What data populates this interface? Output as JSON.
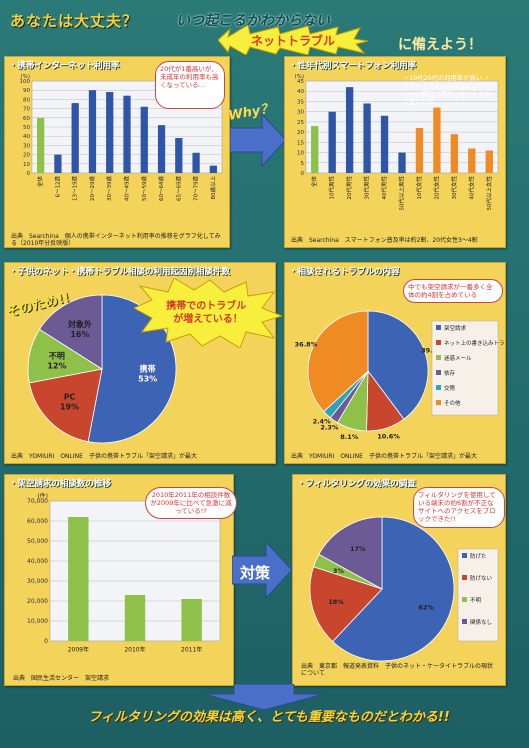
{
  "header": {
    "question": "あなたは大丈夫？",
    "tagline": "いつ起こるかわからない",
    "highlight": "ネットトラブル",
    "suffix": "に備えよう！"
  },
  "panel1": {
    "title": "・携帯インターネット利用率",
    "note": "20代が1番高いが、未成年の利用率も高くなっている…",
    "source": "出典　Searchina　個人の携帯インターネット利用率の推移をグラフ化してみる（2010年分反映版）"
  },
  "panel2": {
    "title": "・性年代別スマートフォン利用率",
    "note": "・10代20代の利用率が高い ・スマートフォンの普及によりネットの閲覧が簡単になったためと思われる。",
    "source": "出典　Searchina　スマートフォン普及率は約2割、20代女性3～4割"
  },
  "why_label": "Why？",
  "panel3": {
    "title": "・子供のネット・携帯トラブル相談の利用起因別相談件数",
    "burst": "携帯でのトラブルが増えている！",
    "source": "出典　YOMIURI　ONLINE　子供の携帯トラブル「架空請求」が最大"
  },
  "sonotame": "そのため!!",
  "panel4": {
    "title": "・相談されるトラブルの内容",
    "bubble": "中でも架空請求が一番多く全体の約4割を占めている",
    "source": "出典　YOMIURI　ONLINE　子供の携帯トラブル「架空請求」が最大"
  },
  "panel5": {
    "title": "・架空請求の相談数の推移",
    "bubble": "2010年2011年の相談件数が2009年に比べて急激に減っている!?",
    "source": "出典　国民生活センター　架空請求"
  },
  "taisaku": "対策",
  "panel6": {
    "title": "・フィルタリングの効果の調査",
    "bubble": "フィルタリングを使用している端末の約6割が不正なサイトへのアクセスをブロックできた!!",
    "source": "出典　東京都　報道発表資料　子供のネット・ケータイトラブルの現状について"
  },
  "footer": "フィルタリングの効果は高く、とても重要なものだとわかる!!",
  "colors": {
    "blue": "#3d63b5",
    "green": "#8fc04a",
    "orange": "#f08a22",
    "red": "#c8462e",
    "purple": "#6b5a94",
    "teal": "#2a7a78",
    "yellow": "#f4d35a"
  },
  "chart_data": [
    {
      "type": "bar",
      "title": "携帯インターネット利用率",
      "ylabel": "(%)",
      "ylim": [
        0,
        100
      ],
      "categories": [
        "全体",
        "6～12歳",
        "13～19歳",
        "20～29歳",
        "30～39歳",
        "40～49歳",
        "50～59歳",
        "60～64歳",
        "65～69歳",
        "70～79歳",
        "80歳以上"
      ],
      "values": [
        60,
        20,
        76,
        90,
        88,
        84,
        72,
        52,
        38,
        22,
        8
      ],
      "highlight_index": 0
    },
    {
      "type": "bar",
      "title": "性年代別スマートフォン利用率",
      "ylabel": "(%)",
      "ylim": [
        0,
        45
      ],
      "categories": [
        "全体",
        "10代男性",
        "20代男性",
        "30代男性",
        "40代男性",
        "50代以上男性",
        "10代女性",
        "20代女性",
        "30代女性",
        "40代女性",
        "50代以上女性"
      ],
      "values": [
        23,
        30,
        42,
        34,
        28,
        10,
        22,
        32,
        19,
        12,
        11
      ],
      "highlight_index": 0,
      "female_start": 6
    },
    {
      "type": "pie",
      "title": "子供のネット・携帯トラブル相談の利用起因別相談件数",
      "labels": [
        "携帯",
        "PC",
        "不明",
        "対象外"
      ],
      "values": [
        53,
        19,
        12,
        16
      ],
      "colors": [
        "#3d63b5",
        "#c8462e",
        "#8fc04a",
        "#6b5a94"
      ]
    },
    {
      "type": "pie",
      "title": "相談されるトラブルの内容",
      "labels": [
        "架空請求",
        "ネット上の書き込みトラブル",
        "迷惑メール",
        "依存",
        "交際",
        "その他"
      ],
      "values": [
        39.8,
        10.6,
        8.1,
        2.3,
        2.4,
        36.8
      ],
      "colors": [
        "#3d63b5",
        "#c8462e",
        "#8fc04a",
        "#6b5a94",
        "#2fa3b8",
        "#f08a22"
      ]
    },
    {
      "type": "bar",
      "title": "架空請求の相談数の推移",
      "ylabel": "(件)",
      "ylim": [
        0,
        70000
      ],
      "yticks": [
        0,
        10000,
        20000,
        30000,
        40000,
        50000,
        60000,
        70000
      ],
      "categories": [
        "2009年",
        "2010年",
        "2011年"
      ],
      "values": [
        62000,
        23000,
        21000
      ]
    },
    {
      "type": "pie",
      "title": "フィルタリングの効果の調査",
      "labels": [
        "防げた",
        "防げない",
        "不明",
        "関係なし"
      ],
      "values": [
        62,
        18,
        3,
        17
      ],
      "colors": [
        "#3d63b5",
        "#c8462e",
        "#8fc04a",
        "#6b5a94"
      ]
    }
  ]
}
